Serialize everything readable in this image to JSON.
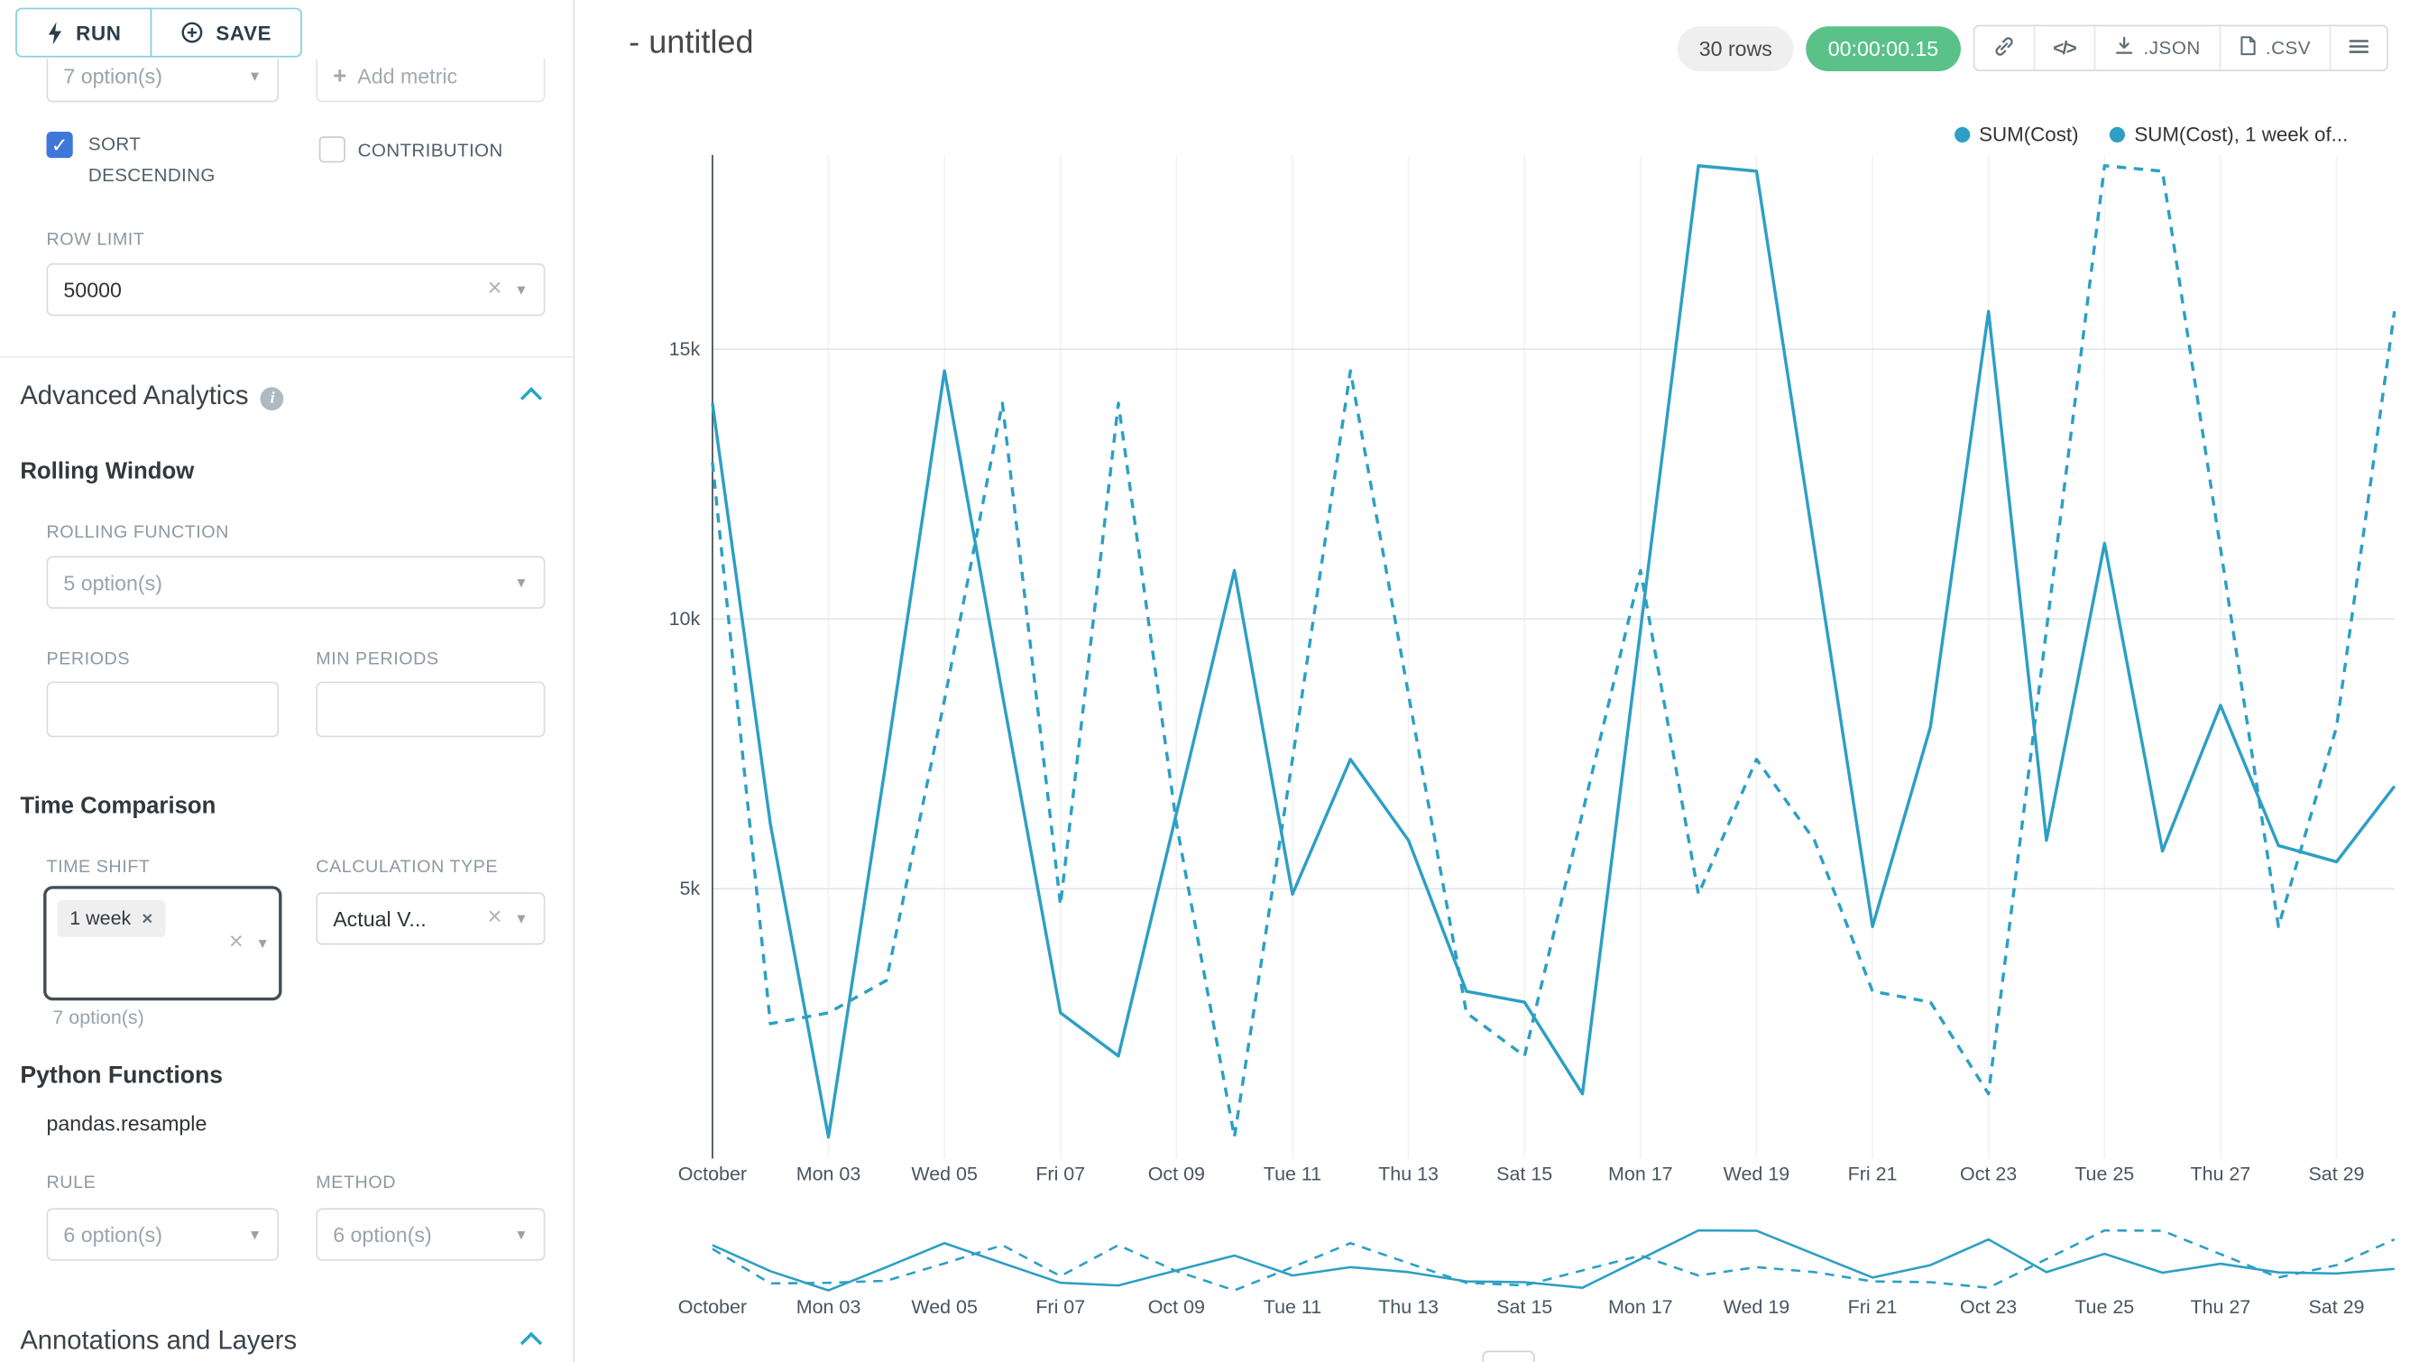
{
  "colors": {
    "accent": "#20A7C9",
    "timer_green": "#5AC189",
    "series": "#2D9FC4",
    "checkbox_blue": "#3E79DA"
  },
  "panel": {
    "run_label": "RUN",
    "save_label": "SAVE",
    "metric_placeholder": "7 option(s)",
    "add_metric_label": "Add metric",
    "sort_descending": "SORT DESCENDING",
    "contribution": "CONTRIBUTION",
    "row_limit_label": "ROW LIMIT",
    "row_limit_value": "50000",
    "advanced_title": "Advanced Analytics",
    "rolling_title": "Rolling Window",
    "rolling_function_label": "ROLLING FUNCTION",
    "rolling_function_placeholder": "5 option(s)",
    "periods_label": "PERIODS",
    "min_periods_label": "MIN PERIODS",
    "time_comparison_title": "Time Comparison",
    "time_shift_label": "TIME SHIFT",
    "time_shift_tag": "1 week",
    "time_shift_hint": "7 option(s)",
    "calc_type_label": "CALCULATION TYPE",
    "calc_type_value": "Actual V...",
    "python_title": "Python Functions",
    "python_sub": "pandas.resample",
    "rule_label": "RULE",
    "rule_placeholder": "6 option(s)",
    "method_label": "METHOD",
    "method_placeholder": "6 option(s)",
    "annotations_title": "Annotations and Layers"
  },
  "header": {
    "title": "- untitled",
    "rows_badge": "30 rows",
    "timer_badge": "00:00:00.15",
    "embed_label": "</>",
    "json_label": ".JSON",
    "csv_label": ".CSV"
  },
  "chart_data": {
    "type": "line",
    "title": "",
    "xlabel": "",
    "ylabel": "",
    "legend_position": "top-right",
    "grid": true,
    "color": "#2D9FC4",
    "ylim": [
      0,
      18600
    ],
    "ytick_values": [
      5000,
      10000,
      15000
    ],
    "ytick_labels": [
      "5k",
      "10k",
      "15k"
    ],
    "tick_every": 2,
    "tick_labels": [
      "October",
      "Mon 03",
      "Wed 05",
      "Fri 07",
      "Oct 09",
      "Tue 11",
      "Thu 13",
      "Sat 15",
      "Mon 17",
      "Wed 19",
      "Fri 21",
      "Oct 23",
      "Tue 25",
      "Thu 27",
      "Sat 29"
    ],
    "x": [
      "Oct 01",
      "Oct 02",
      "Oct 03",
      "Oct 04",
      "Oct 05",
      "Oct 06",
      "Oct 07",
      "Oct 08",
      "Oct 09",
      "Oct 10",
      "Oct 11",
      "Oct 12",
      "Oct 13",
      "Oct 14",
      "Oct 15",
      "Oct 16",
      "Oct 17",
      "Oct 18",
      "Oct 19",
      "Oct 20",
      "Oct 21",
      "Oct 22",
      "Oct 23",
      "Oct 24",
      "Oct 25",
      "Oct 26",
      "Oct 27",
      "Oct 28",
      "Oct 29",
      "Oct 30"
    ],
    "series": [
      {
        "name": "SUM(Cost)",
        "style": "solid",
        "values": [
          14000,
          6200,
          400,
          7400,
          14600,
          8600,
          2700,
          1900,
          6400,
          10900,
          4900,
          7400,
          5900,
          3100,
          2900,
          1200,
          9800,
          18400,
          18300,
          11300,
          4300,
          8000,
          15700,
          5900,
          11400,
          5700,
          8400,
          5800,
          5500,
          6900
        ]
      },
      {
        "name": "SUM(Cost), 1 week of...",
        "style": "dashed",
        "values": [
          12900,
          2500,
          2700,
          3300,
          8500,
          14000,
          4700,
          14000,
          6200,
          400,
          7400,
          14600,
          8600,
          2700,
          1900,
          6400,
          10900,
          4900,
          7400,
          5900,
          3100,
          2900,
          1200,
          9800,
          18400,
          18300,
          11300,
          4300,
          8000,
          15700
        ]
      }
    ]
  }
}
